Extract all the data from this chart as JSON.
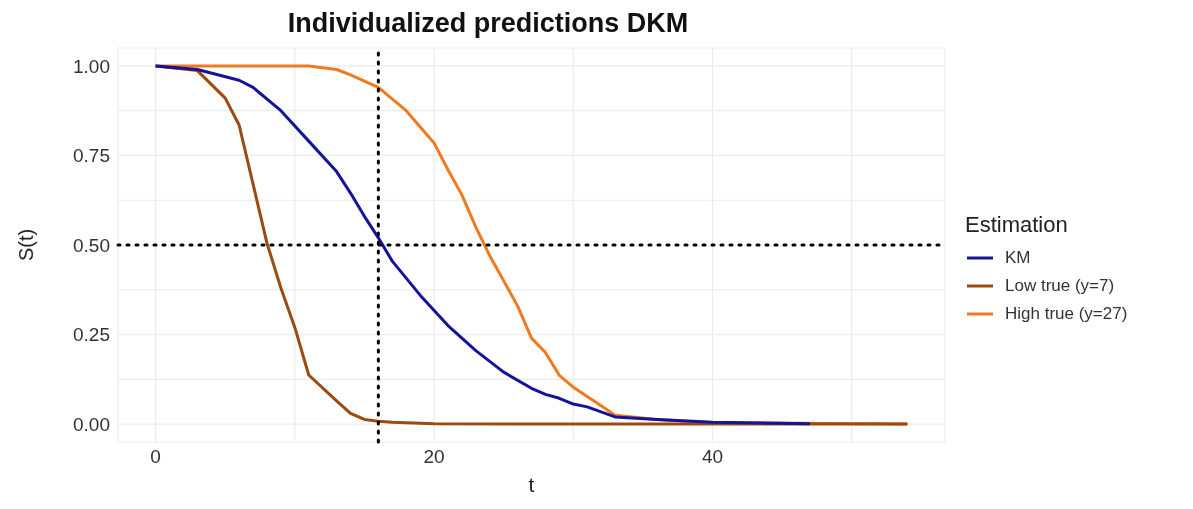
{
  "chart_data": {
    "type": "line",
    "title": "Individualized predictions DKM",
    "xlabel": "t",
    "ylabel": "S(t)",
    "legend_title": "Estimation",
    "xlim": [
      -2.7,
      56.7
    ],
    "ylim": [
      -0.05,
      1.05
    ],
    "xticks": [
      0,
      {
        "value": 10,
        "label": null
      },
      20,
      {
        "value": 30,
        "label": null
      },
      40,
      {
        "value": 50,
        "label": null
      }
    ],
    "yticks": [
      {
        "value": 0,
        "label": "0.00"
      },
      {
        "value": 0.125,
        "label": null
      },
      {
        "value": 0.25,
        "label": "0.25"
      },
      {
        "value": 0.375,
        "label": null
      },
      {
        "value": 0.5,
        "label": "0.50"
      },
      {
        "value": 0.625,
        "label": null
      },
      {
        "value": 0.75,
        "label": "0.75"
      },
      {
        "value": 0.875,
        "label": null
      },
      {
        "value": 1,
        "label": "1.00"
      }
    ],
    "grid": true,
    "legend": "right",
    "marker": "none",
    "line_style": "solid",
    "ref_lines": [
      {
        "axis": "x",
        "value": 16,
        "color": "#000000",
        "line_style": "dotted"
      },
      {
        "axis": "y",
        "value": 0.5,
        "color": "#000000",
        "line_style": "dotted"
      }
    ],
    "series": [
      {
        "name": "KM",
        "color": "#14149a",
        "x": [
          0,
          3,
          6,
          7,
          9,
          11,
          13,
          14,
          15,
          16,
          17,
          19,
          21,
          23,
          25,
          27,
          28,
          29,
          30,
          31,
          33,
          36,
          40,
          47
        ],
        "values": [
          1.0,
          0.99,
          0.96,
          0.94,
          0.875,
          0.79,
          0.705,
          0.645,
          0.58,
          0.52,
          0.455,
          0.36,
          0.275,
          0.205,
          0.145,
          0.1,
          0.083,
          0.072,
          0.056,
          0.048,
          0.02,
          0.013,
          0.005,
          0.001
        ]
      },
      {
        "name": "Low true (y=7)",
        "color": "#9b4a10",
        "x": [
          0,
          3,
          5,
          6,
          7,
          8,
          9,
          10,
          11,
          13,
          14,
          15,
          16,
          17,
          20,
          30,
          54
        ],
        "values": [
          1.0,
          0.987,
          0.91,
          0.835,
          0.67,
          0.505,
          0.38,
          0.27,
          0.137,
          0.065,
          0.03,
          0.013,
          0.008,
          0.005,
          0.001,
          0.0,
          0.0
        ]
      },
      {
        "name": "High true (y=27)",
        "color": "#f07a1e",
        "x": [
          0,
          11,
          13,
          14,
          16,
          18,
          20,
          21,
          22,
          23,
          24,
          26,
          27,
          28,
          29,
          30,
          32,
          33,
          36,
          40,
          54
        ],
        "values": [
          1.0,
          1.0,
          0.99,
          0.975,
          0.94,
          0.875,
          0.785,
          0.71,
          0.64,
          0.55,
          0.47,
          0.33,
          0.24,
          0.2,
          0.136,
          0.103,
          0.051,
          0.025,
          0.013,
          0.004,
          0.0
        ]
      }
    ]
  }
}
